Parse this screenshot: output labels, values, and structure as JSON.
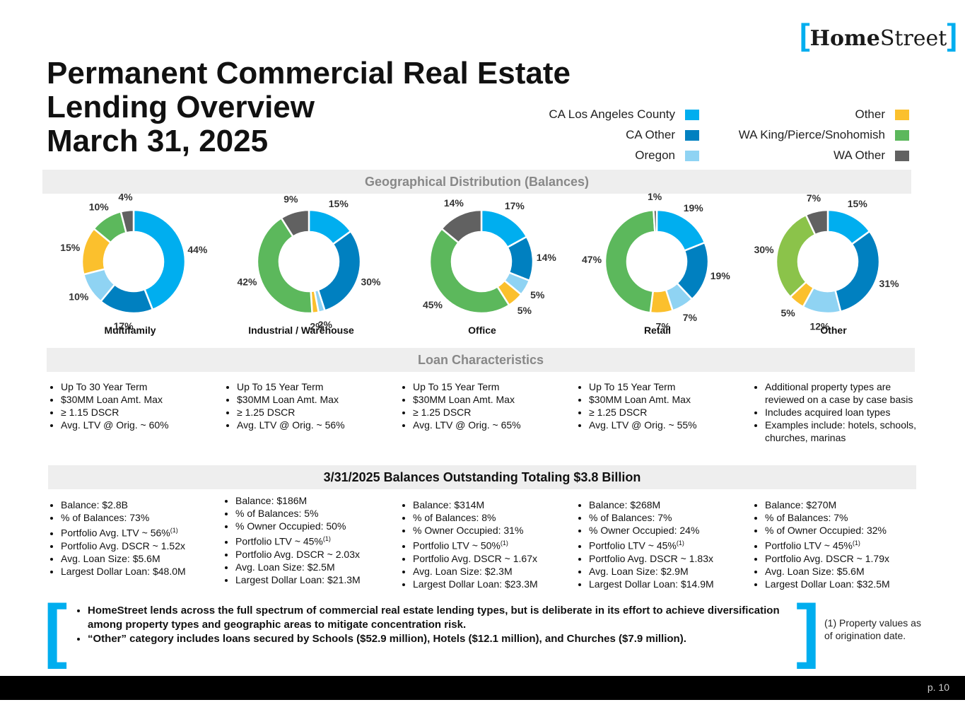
{
  "logo": {
    "open": "[",
    "bold": "Home",
    "light": "Street",
    "close": "]"
  },
  "title": [
    "Permanent Commercial Real Estate",
    "Lending Overview",
    "March 31, 2025"
  ],
  "legend": [
    {
      "label": "CA Los Angeles County",
      "color": "#00aeef"
    },
    {
      "label": "CA Other",
      "color": "#0080c0"
    },
    {
      "label": "Oregon",
      "color": "#8fd3f3"
    },
    {
      "label": "Other",
      "color": "#fbc02d"
    },
    {
      "label": "WA King/Pierce/Snohomish",
      "color": "#5cb85c"
    },
    {
      "label": "WA Other",
      "color": "#616161"
    }
  ],
  "bands": {
    "geo": "Geographical Distribution (Balances)",
    "loan": "Loan Characteristics",
    "balances": "3/31/2025 Balances Outstanding Totaling $3.8 Billion"
  },
  "chart_data": [
    {
      "type": "pie",
      "title": "Multifamily",
      "categories": [
        "CA Los Angeles County",
        "CA Other",
        "Oregon",
        "Other",
        "WA King/Pierce/Snohomish",
        "WA Other"
      ],
      "values": [
        44,
        17,
        10,
        15,
        10,
        4
      ],
      "labels": [
        "44%",
        "17%",
        "10%",
        "15%",
        "10%",
        "4%"
      ],
      "colors": [
        "#00aeef",
        "#0080c0",
        "#8fd3f3",
        "#fbc02d",
        "#5cb85c",
        "#616161"
      ]
    },
    {
      "type": "pie",
      "title": "Industrial / Warehouse",
      "categories": [
        "CA Los Angeles County",
        "CA Other",
        "Oregon",
        "Other",
        "WA King/Pierce/Snohomish",
        "WA Other"
      ],
      "values": [
        15,
        30,
        2,
        2,
        42,
        9
      ],
      "labels": [
        "15%",
        "30%",
        "2%",
        "2%",
        "42%",
        "9%"
      ],
      "colors": [
        "#00aeef",
        "#0080c0",
        "#8fd3f3",
        "#fbc02d",
        "#5cb85c",
        "#616161"
      ]
    },
    {
      "type": "pie",
      "title": "Office",
      "categories": [
        "CA Los Angeles County",
        "CA Other",
        "Oregon",
        "Other",
        "WA King/Pierce/Snohomish",
        "WA Other"
      ],
      "values": [
        17,
        14,
        5,
        5,
        45,
        14
      ],
      "labels": [
        "17%",
        "14%",
        "5%",
        "5%",
        "45%",
        "14%"
      ],
      "colors": [
        "#00aeef",
        "#0080c0",
        "#8fd3f3",
        "#fbc02d",
        "#5cb85c",
        "#616161"
      ]
    },
    {
      "type": "pie",
      "title": "Retail",
      "categories": [
        "CA Los Angeles County",
        "CA Other",
        "Oregon",
        "Other",
        "WA King/Pierce/Snohomish",
        "WA Other"
      ],
      "values": [
        19,
        19,
        7,
        7,
        47,
        1
      ],
      "labels": [
        "19%",
        "19%",
        "7%",
        "7%",
        "47%",
        "1%"
      ],
      "colors": [
        "#00aeef",
        "#0080c0",
        "#8fd3f3",
        "#fbc02d",
        "#5cb85c",
        "#616161"
      ]
    },
    {
      "type": "pie",
      "title": "Other",
      "categories": [
        "CA Los Angeles County",
        "CA Other",
        "Oregon",
        "Other",
        "WA King/Pierce/Snohomish",
        "WA Other"
      ],
      "values": [
        15,
        31,
        12,
        5,
        30,
        7
      ],
      "labels": [
        "15%",
        "31%",
        "12%",
        "5%",
        "30%",
        "7%"
      ],
      "colors": [
        "#00aeef",
        "#0080c0",
        "#8fd3f3",
        "#fbc02d",
        "#8bc34a",
        "#616161"
      ]
    }
  ],
  "loan_characteristics": [
    [
      "Up To 30 Year Term",
      "$30MM Loan Amt. Max",
      "≥ 1.15 DSCR",
      "Avg. LTV @ Orig. ~ 60%"
    ],
    [
      "Up To 15 Year Term",
      "$30MM Loan Amt. Max",
      "≥ 1.25 DSCR",
      "Avg. LTV @ Orig. ~  56%"
    ],
    [
      "Up To 15 Year Term",
      "$30MM Loan Amt. Max",
      "≥ 1.25 DSCR",
      "Avg. LTV @ Orig. ~ 65%"
    ],
    [
      "Up To 15 Year Term",
      "$30MM Loan Amt. Max",
      "≥ 1.25 DSCR",
      "Avg. LTV @ Orig. ~ 55%"
    ],
    [
      "Additional property types are reviewed on a case by case basis",
      "Includes acquired loan types",
      "Examples include:  hotels, schools, churches, marinas"
    ]
  ],
  "balances": [
    [
      {
        "t": "Balance:  $2.8B"
      },
      {
        "t": "% of Balances: 73%"
      },
      {
        "t": "Portfolio Avg. LTV  ~ 56%",
        "sup": "(1)"
      },
      {
        "t": "Portfolio Avg. DSCR ~ 1.52x"
      },
      {
        "t": "Avg. Loan Size:  $5.6M"
      },
      {
        "t": "Largest Dollar Loan: $48.0M"
      }
    ],
    [
      {
        "t": "Balance:  $186M"
      },
      {
        "t": "% of Balances: 5%"
      },
      {
        "t": "% Owner Occupied:  50%"
      },
      {
        "t": "Portfolio LTV ~ 45%",
        "sup": "(1)"
      },
      {
        "t": "Portfolio Avg. DSCR ~ 2.03x"
      },
      {
        "t": "Avg. Loan Size:  $2.5M"
      },
      {
        "t": "Largest Dollar Loan: $21.3M"
      }
    ],
    [
      {
        "t": "Balance:  $314M"
      },
      {
        "t": "% of Balances: 8%"
      },
      {
        "t": "% Owner Occupied:  31%"
      },
      {
        "t": "Portfolio LTV ~ 50%",
        "sup": "(1)"
      },
      {
        "t": "Portfolio Avg. DSCR ~ 1.67x"
      },
      {
        "t": "Avg. Loan Size:  $2.3M"
      },
      {
        "t": "Largest Dollar Loan: $23.3M"
      }
    ],
    [
      {
        "t": "Balance:  $268M"
      },
      {
        "t": "% of Balances: 7%"
      },
      {
        "t": "% Owner Occupied:  24%"
      },
      {
        "t": "Portfolio LTV ~ 45%",
        "sup": "(1)"
      },
      {
        "t": "Portfolio Avg. DSCR ~ 1.83x"
      },
      {
        "t": "Avg. Loan Size:  $2.9M"
      },
      {
        "t": "Largest Dollar Loan: $14.9M"
      }
    ],
    [
      {
        "t": "Balance:  $270M"
      },
      {
        "t": "% of Balances: 7%"
      },
      {
        "t": "% of Owner Occupied:  32%"
      },
      {
        "t": "Portfolio LTV ~ 45%",
        "sup": "(1)"
      },
      {
        "t": "Portfolio Avg. DSCR ~ 1.79x"
      },
      {
        "t": "Avg. Loan Size:  $5.6M"
      },
      {
        "t": "Largest Dollar Loan: $32.5M"
      }
    ]
  ],
  "summary": [
    "HomeStreet lends across the full spectrum of commercial real estate lending types, but is deliberate in its effort to achieve diversification among property types and geographic areas to mitigate concentration risk.",
    "“Other” category includes loans secured by Schools ($52.9 million), Hotels ($12.1 million), and Churches ($7.9 million)."
  ],
  "footnote": "(1) Property values as of origination date.",
  "page_number": "p. 10"
}
